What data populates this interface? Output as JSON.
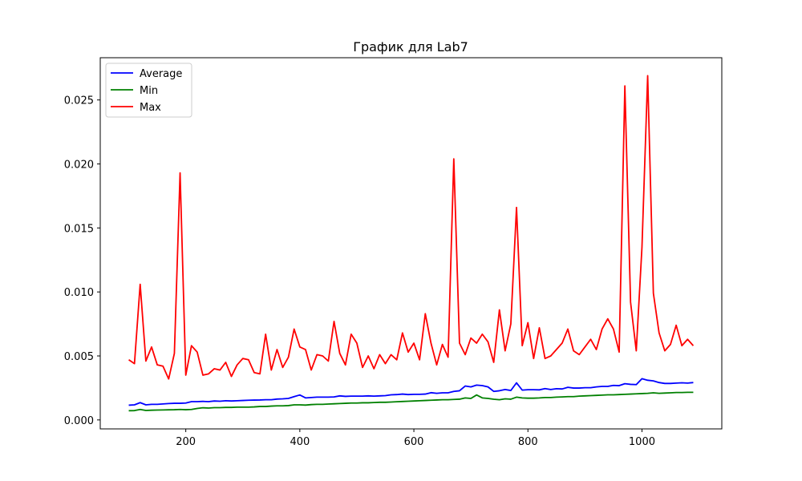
{
  "chart_data": {
    "type": "line",
    "title": "График для Lab7",
    "xlabel": "",
    "ylabel": "",
    "xlim": [
      50,
      1140
    ],
    "ylim": [
      -0.0007,
      0.0283
    ],
    "x_ticks": [
      200,
      400,
      600,
      800,
      1000
    ],
    "y_ticks": [
      0.0,
      0.005,
      0.01,
      0.015,
      0.02,
      0.025
    ],
    "y_tick_labels": [
      "0.000",
      "0.005",
      "0.010",
      "0.015",
      "0.020",
      "0.025"
    ],
    "grid": false,
    "legend_position": "top-left",
    "x": [
      100,
      110,
      120,
      130,
      140,
      150,
      160,
      170,
      180,
      190,
      200,
      210,
      220,
      230,
      240,
      250,
      260,
      270,
      280,
      290,
      300,
      310,
      320,
      330,
      340,
      350,
      360,
      370,
      380,
      390,
      400,
      410,
      420,
      430,
      440,
      450,
      460,
      470,
      480,
      490,
      500,
      510,
      520,
      530,
      540,
      550,
      560,
      570,
      580,
      590,
      600,
      610,
      620,
      630,
      640,
      650,
      660,
      670,
      680,
      690,
      700,
      710,
      720,
      730,
      740,
      750,
      760,
      770,
      780,
      790,
      800,
      810,
      820,
      830,
      840,
      850,
      860,
      870,
      880,
      890,
      900,
      910,
      920,
      930,
      940,
      950,
      960,
      970,
      980,
      990,
      1000,
      1010,
      1020,
      1030,
      1040,
      1050,
      1060,
      1070,
      1080,
      1090
    ],
    "series": [
      {
        "name": "Average",
        "color": "#0000ff",
        "values": [
          0.00115,
          0.00118,
          0.00135,
          0.00118,
          0.00122,
          0.00122,
          0.00125,
          0.00128,
          0.0013,
          0.0013,
          0.00132,
          0.00143,
          0.00143,
          0.00145,
          0.00143,
          0.00148,
          0.00146,
          0.0015,
          0.00148,
          0.0015,
          0.00152,
          0.00154,
          0.00155,
          0.00156,
          0.00158,
          0.00158,
          0.00163,
          0.00165,
          0.00168,
          0.00182,
          0.00195,
          0.00172,
          0.00175,
          0.00178,
          0.00178,
          0.00178,
          0.0018,
          0.00188,
          0.00184,
          0.00186,
          0.00186,
          0.00186,
          0.00188,
          0.00186,
          0.00188,
          0.0019,
          0.00196,
          0.00198,
          0.00202,
          0.00198,
          0.002,
          0.002,
          0.00202,
          0.00213,
          0.00208,
          0.00212,
          0.00212,
          0.00223,
          0.00228,
          0.00265,
          0.00258,
          0.00272,
          0.00268,
          0.00258,
          0.00223,
          0.00228,
          0.00238,
          0.0023,
          0.0029,
          0.00233,
          0.00236,
          0.00236,
          0.00235,
          0.00245,
          0.00238,
          0.00244,
          0.00242,
          0.00255,
          0.00249,
          0.00249,
          0.00252,
          0.00252,
          0.00258,
          0.00262,
          0.00262,
          0.0027,
          0.00268,
          0.00283,
          0.00278,
          0.00276,
          0.00322,
          0.0031,
          0.00305,
          0.00292,
          0.00285,
          0.00285,
          0.00288,
          0.0029,
          0.00288,
          0.00292
        ]
      },
      {
        "name": "Min",
        "color": "#008000",
        "values": [
          0.00072,
          0.00073,
          0.00082,
          0.00074,
          0.00076,
          0.00077,
          0.00078,
          0.00079,
          0.0008,
          0.00082,
          0.0008,
          0.00082,
          0.0009,
          0.00095,
          0.00093,
          0.00096,
          0.00096,
          0.00098,
          0.00098,
          0.001,
          0.001,
          0.001,
          0.00102,
          0.00105,
          0.00105,
          0.00108,
          0.0011,
          0.0011,
          0.00112,
          0.00118,
          0.00118,
          0.00116,
          0.0012,
          0.00122,
          0.00122,
          0.00124,
          0.00126,
          0.00128,
          0.0013,
          0.00132,
          0.00132,
          0.00134,
          0.00134,
          0.00136,
          0.00138,
          0.00138,
          0.0014,
          0.00142,
          0.00144,
          0.00146,
          0.00148,
          0.0015,
          0.00152,
          0.00154,
          0.00156,
          0.00158,
          0.00158,
          0.0016,
          0.00162,
          0.00172,
          0.00168,
          0.00195,
          0.00172,
          0.00168,
          0.00162,
          0.00158,
          0.00165,
          0.00162,
          0.00178,
          0.00172,
          0.0017,
          0.0017,
          0.00172,
          0.00175,
          0.00175,
          0.00178,
          0.0018,
          0.00182,
          0.00182,
          0.00186,
          0.00188,
          0.0019,
          0.00192,
          0.00194,
          0.00196,
          0.00196,
          0.00198,
          0.002,
          0.00202,
          0.00204,
          0.00206,
          0.00208,
          0.00212,
          0.00208,
          0.0021,
          0.00212,
          0.00214,
          0.00214,
          0.00216,
          0.00216
        ]
      },
      {
        "name": "Max",
        "color": "#ff0000",
        "values": [
          0.0047,
          0.0044,
          0.0106,
          0.0046,
          0.0057,
          0.0043,
          0.0042,
          0.0032,
          0.0052,
          0.0193,
          0.0035,
          0.0058,
          0.0053,
          0.0035,
          0.0036,
          0.004,
          0.0039,
          0.0045,
          0.0034,
          0.0043,
          0.0048,
          0.0047,
          0.0037,
          0.0036,
          0.0067,
          0.0039,
          0.0055,
          0.0041,
          0.0049,
          0.0071,
          0.0057,
          0.0055,
          0.0039,
          0.0051,
          0.005,
          0.0046,
          0.0077,
          0.0052,
          0.0043,
          0.0067,
          0.006,
          0.0041,
          0.005,
          0.004,
          0.0051,
          0.0044,
          0.0051,
          0.0047,
          0.0068,
          0.0053,
          0.006,
          0.0047,
          0.0083,
          0.006,
          0.0043,
          0.0059,
          0.0049,
          0.0204,
          0.006,
          0.0051,
          0.0064,
          0.006,
          0.0067,
          0.0061,
          0.0045,
          0.0086,
          0.0054,
          0.0075,
          0.0166,
          0.0058,
          0.0076,
          0.0048,
          0.0072,
          0.0048,
          0.005,
          0.0055,
          0.006,
          0.0071,
          0.0054,
          0.0051,
          0.0057,
          0.0063,
          0.0055,
          0.0071,
          0.0079,
          0.0071,
          0.0053,
          0.0261,
          0.0092,
          0.0054,
          0.0135,
          0.0269,
          0.0099,
          0.0068,
          0.0054,
          0.0059,
          0.0074,
          0.0058,
          0.0063,
          0.0058
        ]
      }
    ]
  }
}
